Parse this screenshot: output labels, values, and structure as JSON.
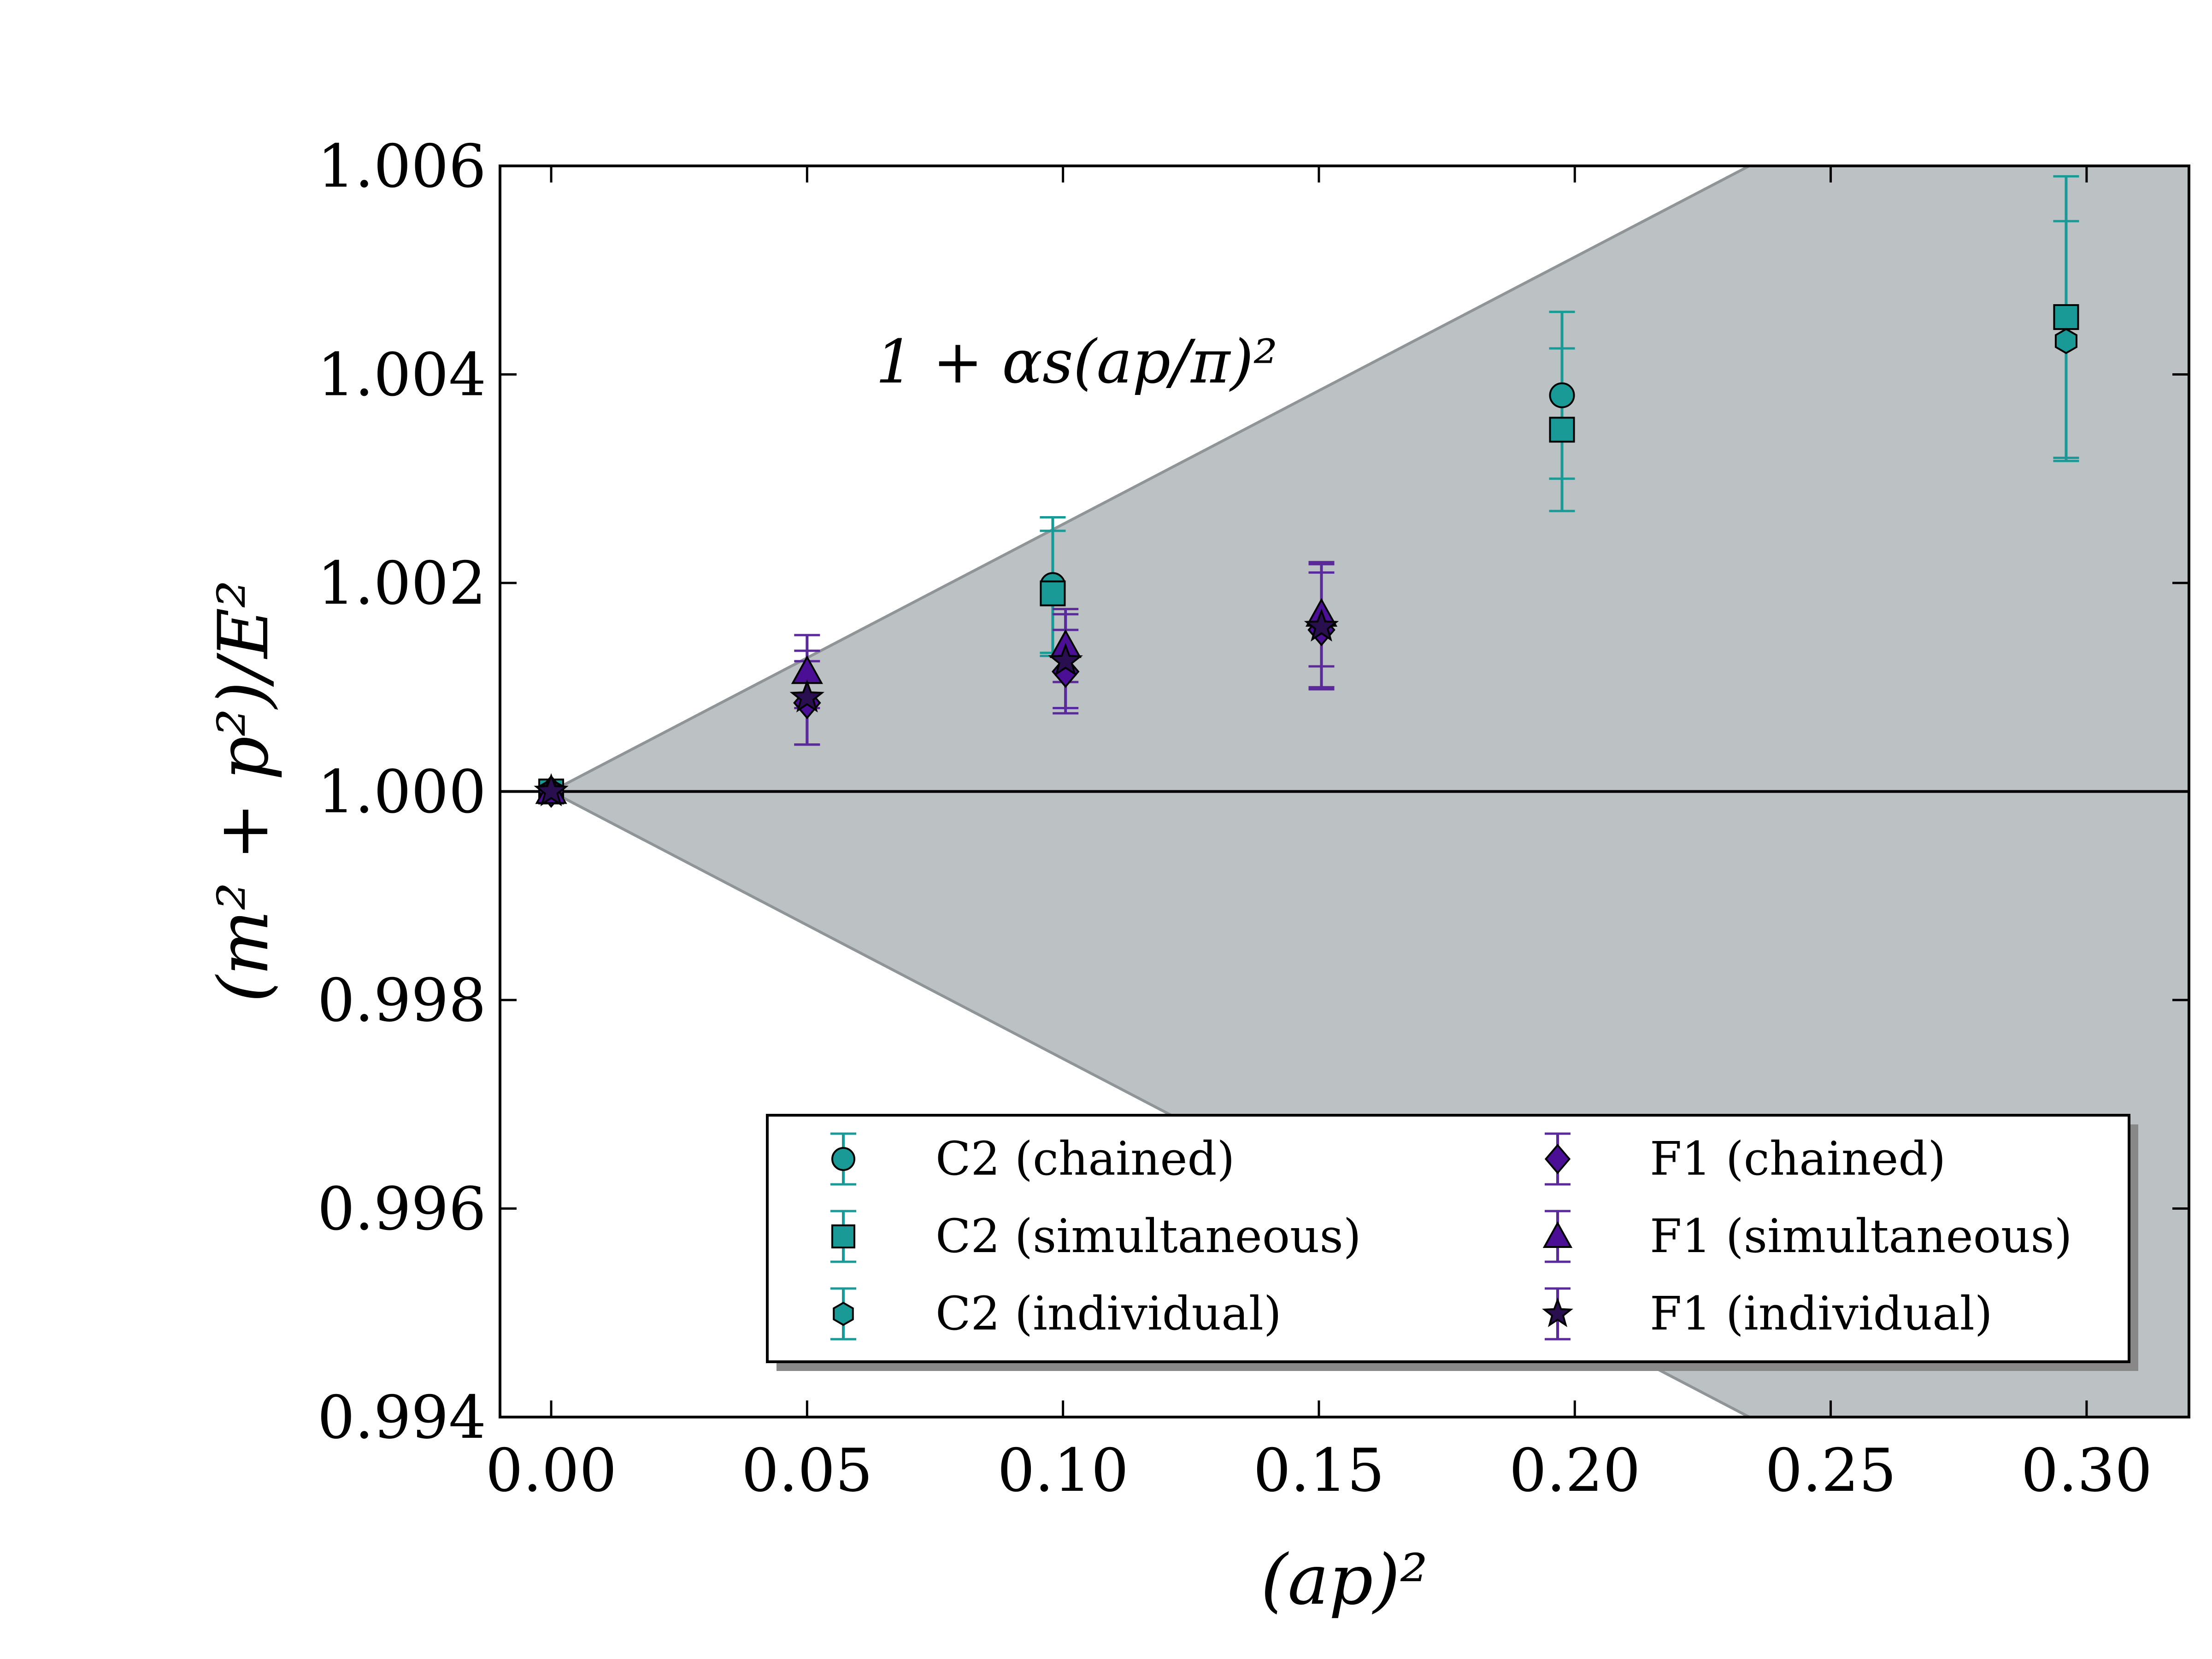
{
  "chart_data": {
    "type": "scatter",
    "title": "",
    "xlabel": "(ap)²",
    "ylabel": "(m² + p²)/E²",
    "xlim": [
      -0.01,
      0.32
    ],
    "ylim": [
      0.994,
      1.006
    ],
    "xticks": [
      0.0,
      0.05,
      0.1,
      0.15,
      0.2,
      0.25,
      0.3
    ],
    "xtick_labels": [
      "0.00",
      "0.05",
      "0.10",
      "0.15",
      "0.20",
      "0.25",
      "0.30"
    ],
    "yticks": [
      0.994,
      0.996,
      0.998,
      1.0,
      1.002,
      1.004,
      1.006
    ],
    "ytick_labels": [
      "0.994",
      "0.996",
      "0.998",
      "1.000",
      "1.002",
      "1.004",
      "1.006"
    ],
    "reference_line": 1.0,
    "band": {
      "label": "1 + αs(ap/π)²",
      "center": 1.0,
      "slope": 0.02563,
      "color": "#bcc1c3"
    },
    "legend_position": "lower-right",
    "series": [
      {
        "name": "C2 (chained)",
        "marker": "circle",
        "color": "#1a9a96",
        "ecolor": "#1a9a96",
        "points": [
          {
            "x": 0.0,
            "y": 1.0,
            "yerr": 0.0
          },
          {
            "x": 0.098,
            "y": 1.00198,
            "yerr": 0.00065
          },
          {
            "x": 0.1975,
            "y": 1.0038,
            "yerr": 0.0008
          }
        ]
      },
      {
        "name": "C2 (simultaneous)",
        "marker": "square",
        "color": "#1a9a96",
        "ecolor": "#1a9a96",
        "points": [
          {
            "x": 0.0,
            "y": 1.0,
            "yerr": 0.0
          },
          {
            "x": 0.098,
            "y": 1.0019,
            "yerr": 0.0006
          },
          {
            "x": 0.1975,
            "y": 1.00347,
            "yerr": 0.00078
          },
          {
            "x": 0.296,
            "y": 1.00455,
            "yerr": 0.00135
          }
        ]
      },
      {
        "name": "C2 (individual)",
        "marker": "hexagon",
        "color": "#1a9a96",
        "ecolor": "#1a9a96",
        "points": [
          {
            "x": 0.0,
            "y": 1.0,
            "yerr": 0.0
          },
          {
            "x": 0.296,
            "y": 1.00432,
            "yerr": 0.00115
          }
        ]
      },
      {
        "name": "F1 (chained)",
        "marker": "diamond",
        "color": "#4b0f96",
        "ecolor": "#5a2a9a",
        "points": [
          {
            "x": 0.0,
            "y": 1.0,
            "yerr": 0.0
          },
          {
            "x": 0.05,
            "y": 1.00085,
            "yerr": 0.0004
          },
          {
            "x": 0.1005,
            "y": 1.00115,
            "yerr": 0.0004
          },
          {
            "x": 0.1505,
            "y": 1.00155,
            "yerr": 0.00055
          }
        ]
      },
      {
        "name": "F1 (simultaneous)",
        "marker": "triangle",
        "color": "#4b0f96",
        "ecolor": "#5a2a9a",
        "points": [
          {
            "x": 0.0,
            "y": 1.0,
            "yerr": 0.0
          },
          {
            "x": 0.05,
            "y": 1.00115,
            "yerr": 0.00035
          },
          {
            "x": 0.1005,
            "y": 1.0014,
            "yerr": 0.00035
          },
          {
            "x": 0.1505,
            "y": 1.0017,
            "yerr": 0.0005
          }
        ]
      },
      {
        "name": "F1 (individual)",
        "marker": "star",
        "color": "#2a0f50",
        "ecolor": "#5a2a9a",
        "points": [
          {
            "x": 0.0,
            "y": 1.0,
            "yerr": 0.0
          },
          {
            "x": 0.05,
            "y": 1.0009,
            "yerr": 0.00045
          },
          {
            "x": 0.1005,
            "y": 1.00125,
            "yerr": 0.00045
          },
          {
            "x": 0.1505,
            "y": 1.00158,
            "yerr": 0.0006
          }
        ]
      }
    ]
  }
}
